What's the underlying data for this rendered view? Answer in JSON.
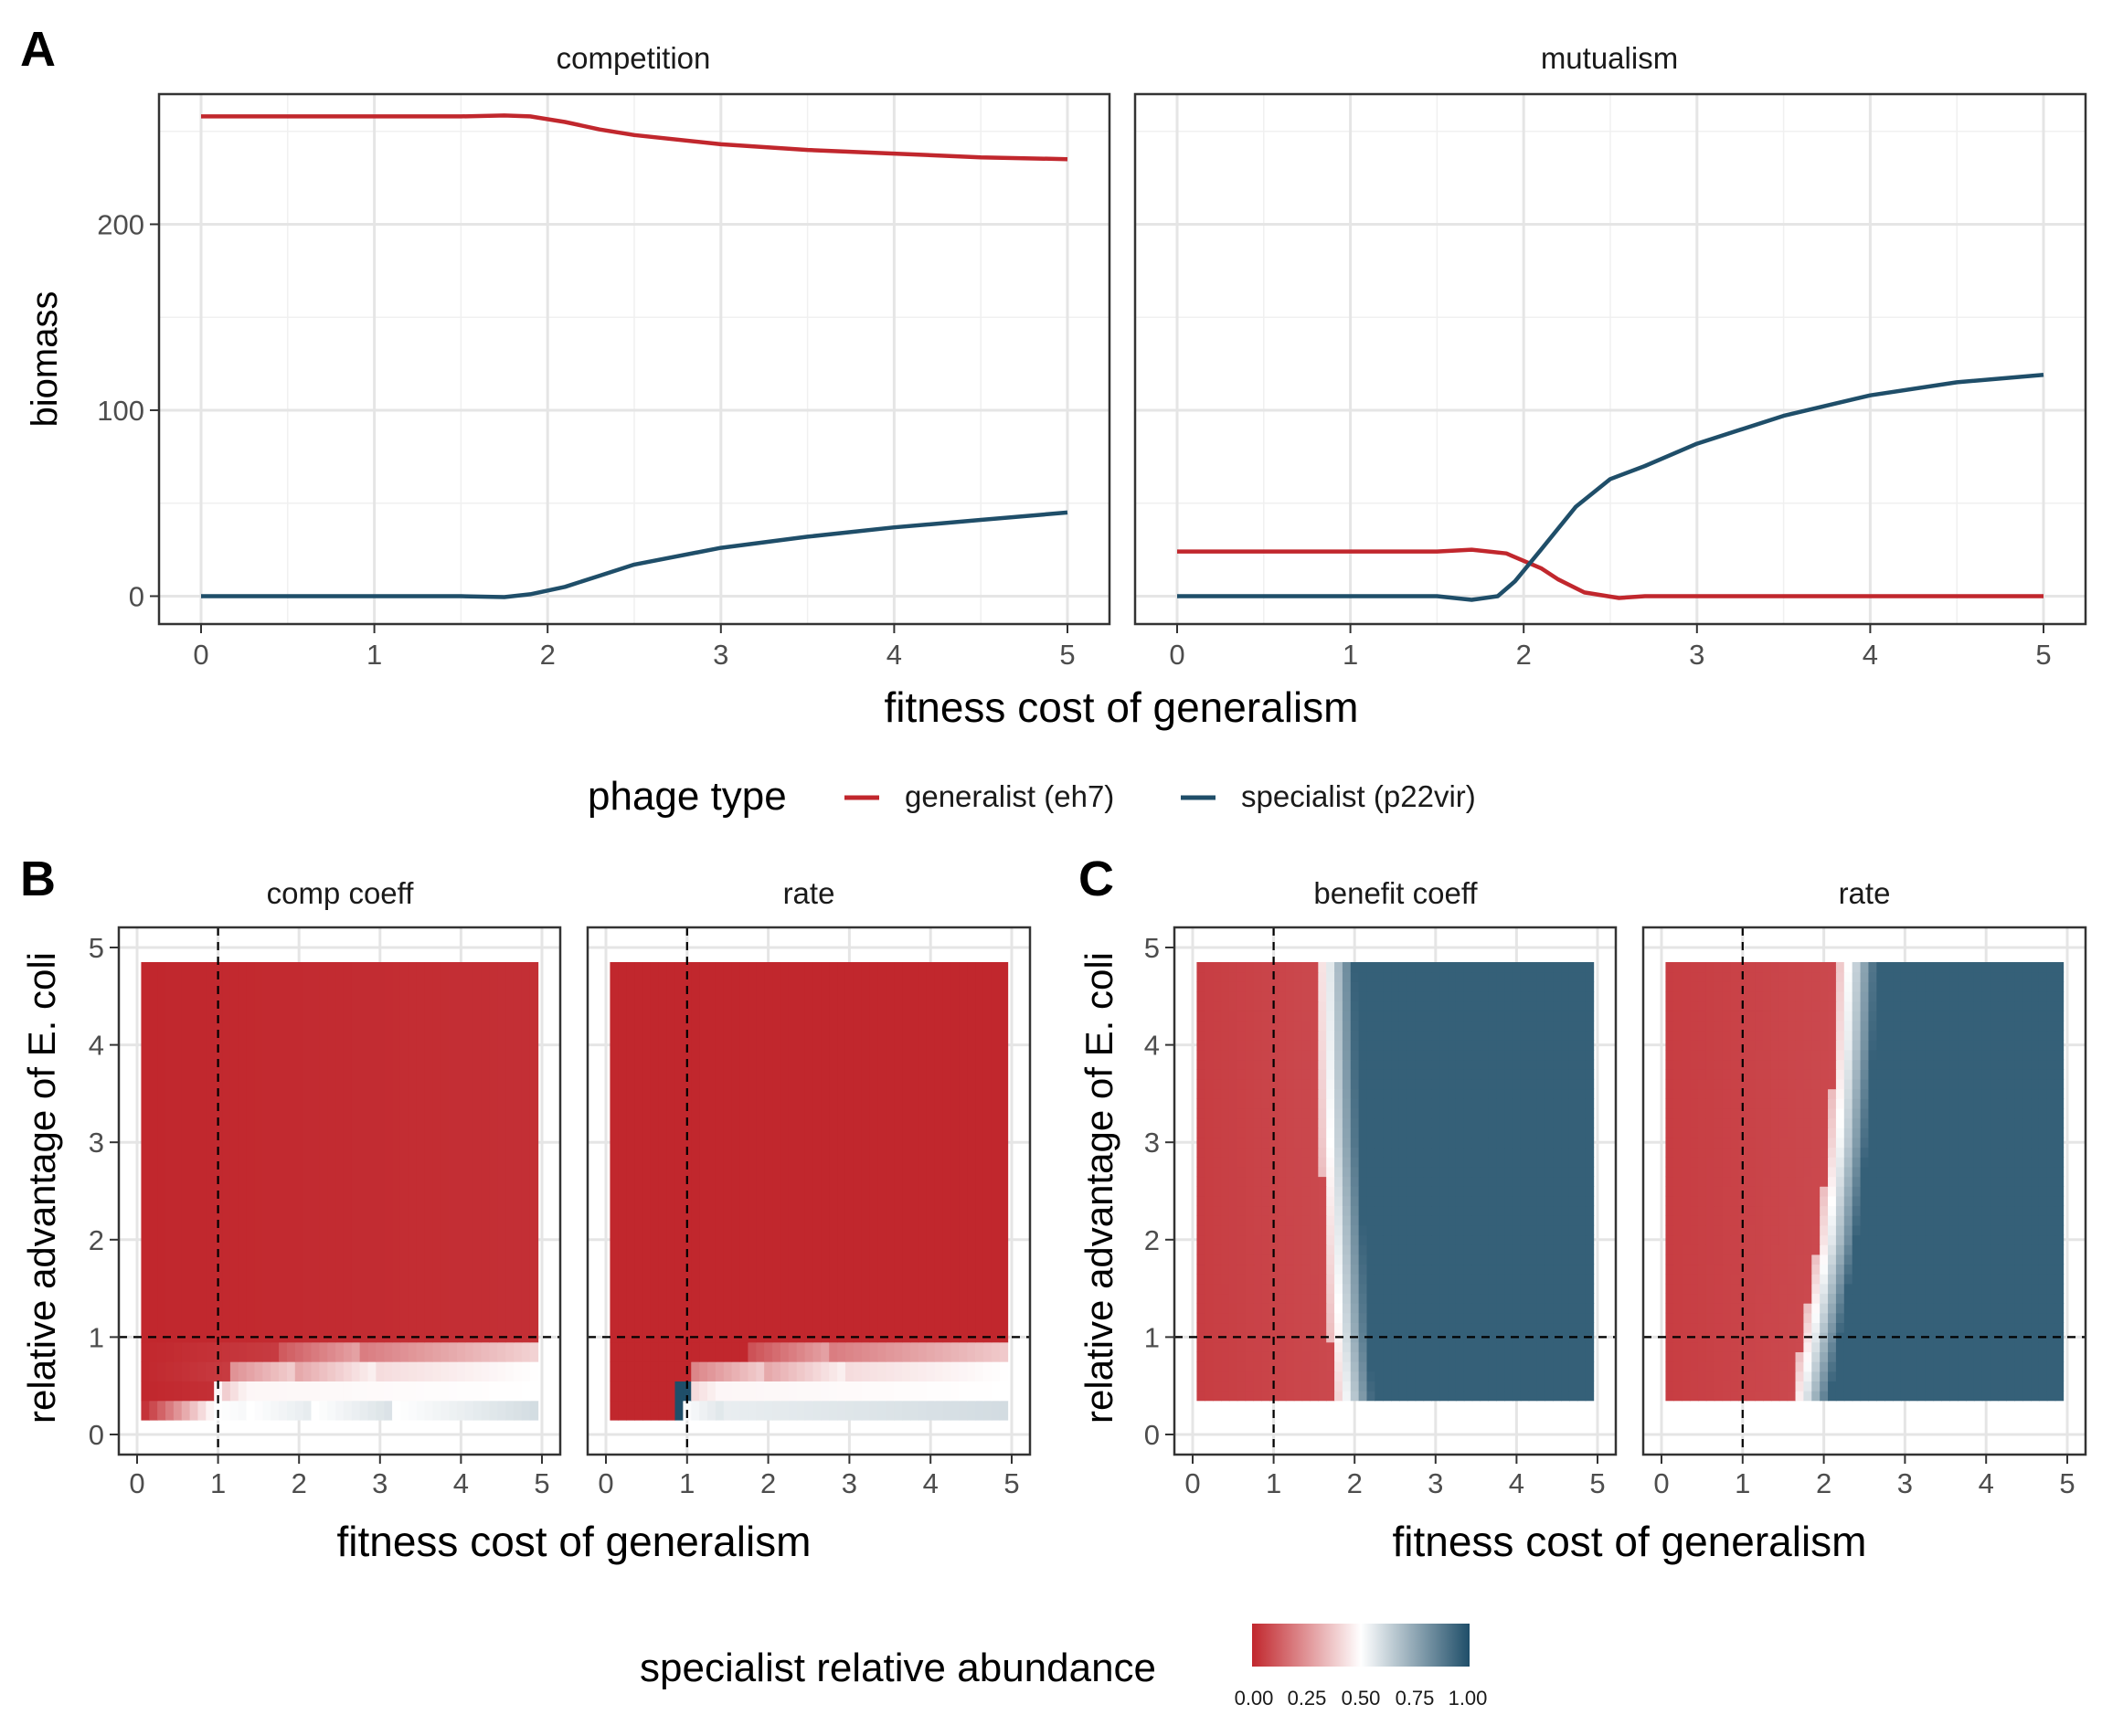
{
  "colors": {
    "generalist": "#C1272D",
    "specialist": "#1F4E69",
    "mid": "#FFFFFF",
    "grid": "#E5E5E5"
  },
  "panel_labels": {
    "a": "A",
    "b": "B",
    "c": "C"
  },
  "panel_a": {
    "xlabel": "fitness cost of generalism",
    "ylabel": "biomass",
    "xticks": [
      "0",
      "1",
      "2",
      "3",
      "4",
      "5"
    ],
    "yticks": [
      "0",
      "100",
      "200"
    ]
  },
  "legend_a": {
    "title": "phage type",
    "items": [
      {
        "label": "generalist (eh7)",
        "color": "#C1272D"
      },
      {
        "label": "specialist (p22vir)",
        "color": "#1F4E69"
      }
    ]
  },
  "panel_b": {
    "xlabel": "fitness cost of generalism",
    "ylabel": "relative advantage of E. coli"
  },
  "panel_c": {
    "xlabel": "fitness cost of generalism",
    "ylabel": "relative advantage of E. coli"
  },
  "heat_ticks": {
    "x": [
      "0",
      "1",
      "2",
      "3",
      "4",
      "5"
    ],
    "y": [
      "0",
      "1",
      "2",
      "3",
      "4",
      "5"
    ]
  },
  "colorbar": {
    "title": "specialist relative abundance",
    "ticks": [
      "0.00",
      "0.25",
      "0.50",
      "0.75",
      "1.00"
    ]
  },
  "chart_data": [
    {
      "type": "line",
      "facet": "competition",
      "xlim": [
        0,
        5
      ],
      "ylim": [
        -15,
        270
      ],
      "series": [
        {
          "name": "generalist (eh7)",
          "x": [
            0,
            0.5,
            1,
            1.5,
            1.75,
            1.9,
            2.1,
            2.3,
            2.5,
            3,
            3.5,
            4,
            4.5,
            5
          ],
          "y": [
            258,
            258,
            258,
            258,
            258.5,
            258,
            255,
            251,
            248,
            243,
            240,
            238,
            236,
            235
          ]
        },
        {
          "name": "specialist (p22vir)",
          "x": [
            0,
            0.5,
            1,
            1.5,
            1.75,
            1.9,
            2.1,
            2.3,
            2.5,
            3,
            3.5,
            4,
            4.5,
            5
          ],
          "y": [
            0,
            0,
            0,
            0,
            -0.5,
            1,
            5,
            11,
            17,
            26,
            32,
            37,
            41,
            45
          ]
        }
      ]
    },
    {
      "type": "line",
      "facet": "mutualism",
      "xlim": [
        0,
        5
      ],
      "ylim": [
        -15,
        270
      ],
      "series": [
        {
          "name": "generalist (eh7)",
          "x": [
            0,
            0.5,
            1,
            1.5,
            1.7,
            1.9,
            2.1,
            2.2,
            2.35,
            2.55,
            2.7,
            3,
            4,
            5
          ],
          "y": [
            24,
            24,
            24,
            24,
            25,
            23,
            15,
            9,
            2,
            -1,
            0,
            0,
            0,
            0
          ]
        },
        {
          "name": "specialist (p22vir)",
          "x": [
            0,
            0.5,
            1,
            1.5,
            1.7,
            1.85,
            1.95,
            2.1,
            2.3,
            2.5,
            2.7,
            3,
            3.5,
            4,
            4.5,
            5
          ],
          "y": [
            0,
            0,
            0,
            0,
            -2,
            0,
            8,
            25,
            48,
            63,
            70,
            82,
            97,
            108,
            115,
            119
          ]
        }
      ]
    },
    {
      "type": "heatmap",
      "facet": "comp coeff",
      "interaction": "competition",
      "xlim": [
        0,
        5
      ],
      "ylim": [
        0,
        5
      ],
      "rows": [
        {
          "y0": 0.15,
          "y1": 0.35,
          "values": [
            [
              0.05,
              0,
              0.02
            ],
            [
              0.95,
              0.5,
              0.5
            ],
            [
              1.4,
              0.5,
              0.52
            ],
            [
              2.2,
              0.5,
              0.56
            ],
            [
              3.2,
              0.5,
              0.59
            ],
            [
              4.95,
              0.5,
              0.6
            ]
          ]
        },
        {
          "y0": 0.35,
          "y1": 0.55,
          "values": [
            [
              0.05,
              0,
              0.02
            ],
            [
              0.95,
              0.02,
              0.02
            ],
            [
              1.0,
              0.35,
              0.48
            ],
            [
              1.4,
              0.48,
              0.5
            ],
            [
              4.95,
              0.5,
              0.5
            ]
          ]
        },
        {
          "y0": 0.55,
          "y1": 0.75,
          "values": [
            [
              0.05,
              0,
              0.02
            ],
            [
              1.2,
              0.05,
              0.05
            ],
            [
              1.2,
              0.25,
              0.25
            ],
            [
              2.0,
              0.3,
              0.4
            ],
            [
              3.0,
              0.42,
              0.48
            ],
            [
              4.95,
              0.49,
              0.5
            ]
          ]
        },
        {
          "y0": 0.75,
          "y1": 0.95,
          "values": [
            [
              0.05,
              0,
              0.02
            ],
            [
              1.8,
              0.05,
              0.05
            ],
            [
              1.8,
              0.12,
              0.15
            ],
            [
              2.8,
              0.2,
              0.3
            ],
            [
              4.95,
              0.35,
              0.4
            ]
          ]
        },
        {
          "y0": 0.95,
          "y1": 4.85,
          "values": [
            [
              0.05,
              0,
              0.02
            ],
            [
              4.95,
              0.02,
              0.02
            ]
          ]
        }
      ]
    },
    {
      "type": "heatmap",
      "facet": "rate",
      "interaction": "competition",
      "xlim": [
        0,
        5
      ],
      "ylim": [
        0,
        5
      ],
      "rows": [
        {
          "y0": 0.15,
          "y1": 0.35,
          "values": [
            [
              0.05,
              0,
              0
            ],
            [
              0.82,
              0,
              0
            ],
            [
              0.82,
              1,
              1
            ],
            [
              0.92,
              1,
              1
            ],
            [
              0.92,
              0.5,
              0.52
            ],
            [
              1.5,
              0.55,
              0.58
            ],
            [
              4.95,
              0.58,
              0.6
            ]
          ]
        },
        {
          "y0": 0.35,
          "y1": 0.55,
          "values": [
            [
              0.05,
              0,
              0
            ],
            [
              0.82,
              0,
              0
            ],
            [
              0.82,
              1,
              1
            ],
            [
              1.0,
              1,
              1
            ],
            [
              1.0,
              0.4,
              0.48
            ],
            [
              1.5,
              0.48,
              0.5
            ],
            [
              4.95,
              0.5,
              0.5
            ]
          ]
        },
        {
          "y0": 0.55,
          "y1": 0.75,
          "values": [
            [
              0.05,
              0,
              0
            ],
            [
              1.0,
              0,
              0
            ],
            [
              1.0,
              0.2,
              0.25
            ],
            [
              2.0,
              0.3,
              0.4
            ],
            [
              3.0,
              0.42,
              0.48
            ],
            [
              4.95,
              0.49,
              0.5
            ]
          ]
        },
        {
          "y0": 0.75,
          "y1": 0.95,
          "values": [
            [
              0.05,
              0,
              0
            ],
            [
              1.8,
              0,
              0
            ],
            [
              1.8,
              0.1,
              0.15
            ],
            [
              2.8,
              0.2,
              0.3
            ],
            [
              4.95,
              0.33,
              0.38
            ]
          ]
        },
        {
          "y0": 0.95,
          "y1": 4.85,
          "values": [
            [
              0.05,
              0,
              0
            ],
            [
              4.95,
              0,
              0
            ]
          ]
        }
      ]
    },
    {
      "type": "heatmap",
      "facet": "benefit coeff",
      "interaction": "mutualism",
      "xlim": [
        0,
        5
      ],
      "ylim": [
        0,
        5
      ],
      "boundary": [
        {
          "y": 0.35,
          "x": 1.88
        },
        {
          "y": 1.0,
          "x": 1.82
        },
        {
          "y": 2.0,
          "x": 1.76
        },
        {
          "y": 3.0,
          "x": 1.7
        },
        {
          "y": 4.0,
          "x": 1.67
        },
        {
          "y": 4.85,
          "x": 1.65
        }
      ],
      "rows": [
        {
          "y0": 0.35,
          "y1": 4.85,
          "values": [
            [
              0.05,
              0.05,
              0.05
            ],
            [
              4.95,
              0.95,
              0.95
            ]
          ]
        }
      ]
    },
    {
      "type": "heatmap",
      "facet": "rate",
      "interaction": "mutualism",
      "xlim": [
        0,
        5
      ],
      "ylim": [
        0,
        5
      ],
      "boundary": [
        {
          "y": 0.35,
          "x": 1.72
        },
        {
          "y": 1.0,
          "x": 1.85
        },
        {
          "y": 2.0,
          "x": 2.05
        },
        {
          "y": 3.0,
          "x": 2.18
        },
        {
          "y": 4.0,
          "x": 2.26
        },
        {
          "y": 4.85,
          "x": 2.3
        }
      ],
      "rows": [
        {
          "y0": 0.35,
          "y1": 4.85,
          "values": [
            [
              0.05,
              0.02,
              0.02
            ],
            [
              4.95,
              0.95,
              0.95
            ]
          ]
        }
      ]
    }
  ]
}
